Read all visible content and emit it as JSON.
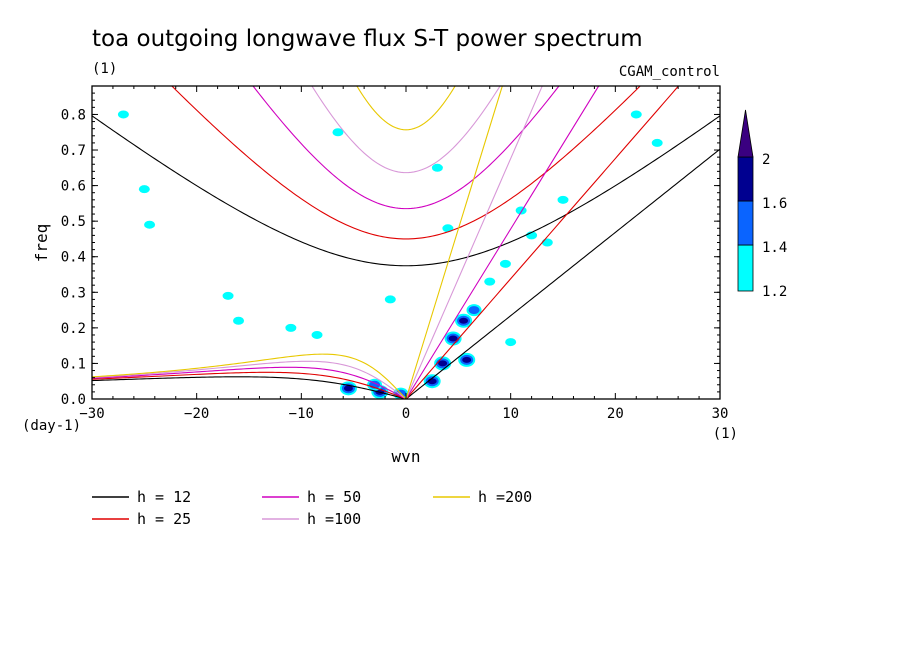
{
  "chart_data": {
    "type": "line",
    "title": "toa outgoing longwave flux S-T power spectrum",
    "subtitle_left": "(1)",
    "subtitle_right": "CGAM_control",
    "xlabel": "wvn",
    "ylabel": "freq",
    "x_unit": "(1)",
    "y_unit": "(day-1)",
    "xlim": [
      -30,
      30
    ],
    "ylim": [
      0,
      0.88
    ],
    "xticks": [
      -30,
      -20,
      -10,
      0,
      10,
      20,
      30
    ],
    "yticks": [
      0.0,
      0.1,
      0.2,
      0.3,
      0.4,
      0.5,
      0.6,
      0.7,
      0.8
    ],
    "series": [
      {
        "name": "h = 12",
        "color": "#000000",
        "h": 12
      },
      {
        "name": "h = 25",
        "color": "#e00000",
        "h": 25
      },
      {
        "name": "h = 50",
        "color": "#d000c0",
        "h": 50
      },
      {
        "name": "h =100",
        "color": "#d898d8",
        "h": 100
      },
      {
        "name": "h =200",
        "color": "#e8c800",
        "h": 200
      }
    ],
    "colorbar": {
      "levels": [
        "1.2",
        "1.4",
        "1.6",
        "2"
      ],
      "colors": [
        "#00ffff",
        "#0a64ff",
        "#000090",
        "#3a0080"
      ]
    },
    "contour_blobs": [
      {
        "x": -5.5,
        "y": 0.03,
        "level": 3
      },
      {
        "x": -2.5,
        "y": 0.02,
        "level": 3
      },
      {
        "x": -0.5,
        "y": 0.015,
        "level": 2
      },
      {
        "x": 2.5,
        "y": 0.05,
        "level": 3
      },
      {
        "x": 3.5,
        "y": 0.1,
        "level": 3
      },
      {
        "x": 4.5,
        "y": 0.17,
        "level": 3
      },
      {
        "x": 5.5,
        "y": 0.22,
        "level": 3
      },
      {
        "x": 6.5,
        "y": 0.25,
        "level": 2
      },
      {
        "x": 5.8,
        "y": 0.11,
        "level": 3
      },
      {
        "x": 8.0,
        "y": 0.33,
        "level": 1
      },
      {
        "x": 9.5,
        "y": 0.38,
        "level": 1
      },
      {
        "x": 11.0,
        "y": 0.53,
        "level": 1
      },
      {
        "x": 13.5,
        "y": 0.44,
        "level": 1
      },
      {
        "x": 15.0,
        "y": 0.56,
        "level": 1
      },
      {
        "x": -6.5,
        "y": 0.75,
        "level": 1
      },
      {
        "x": -3.0,
        "y": 0.04,
        "level": 2
      },
      {
        "x": -25.0,
        "y": 0.59,
        "level": 1
      },
      {
        "x": -27.0,
        "y": 0.8,
        "level": 1
      },
      {
        "x": -24.5,
        "y": 0.49,
        "level": 1
      },
      {
        "x": -17.0,
        "y": 0.29,
        "level": 1
      },
      {
        "x": 3.0,
        "y": 0.65,
        "level": 1
      },
      {
        "x": 4.0,
        "y": 0.48,
        "level": 1
      },
      {
        "x": 12.0,
        "y": 0.46,
        "level": 1
      },
      {
        "x": 22.0,
        "y": 0.8,
        "level": 1
      },
      {
        "x": 24.0,
        "y": 0.72,
        "level": 1
      },
      {
        "x": -11.0,
        "y": 0.2,
        "level": 1
      },
      {
        "x": -8.5,
        "y": 0.18,
        "level": 1
      },
      {
        "x": -16.0,
        "y": 0.22,
        "level": 1
      },
      {
        "x": -1.5,
        "y": 0.28,
        "level": 1
      },
      {
        "x": 10.0,
        "y": 0.16,
        "level": 1
      }
    ]
  }
}
